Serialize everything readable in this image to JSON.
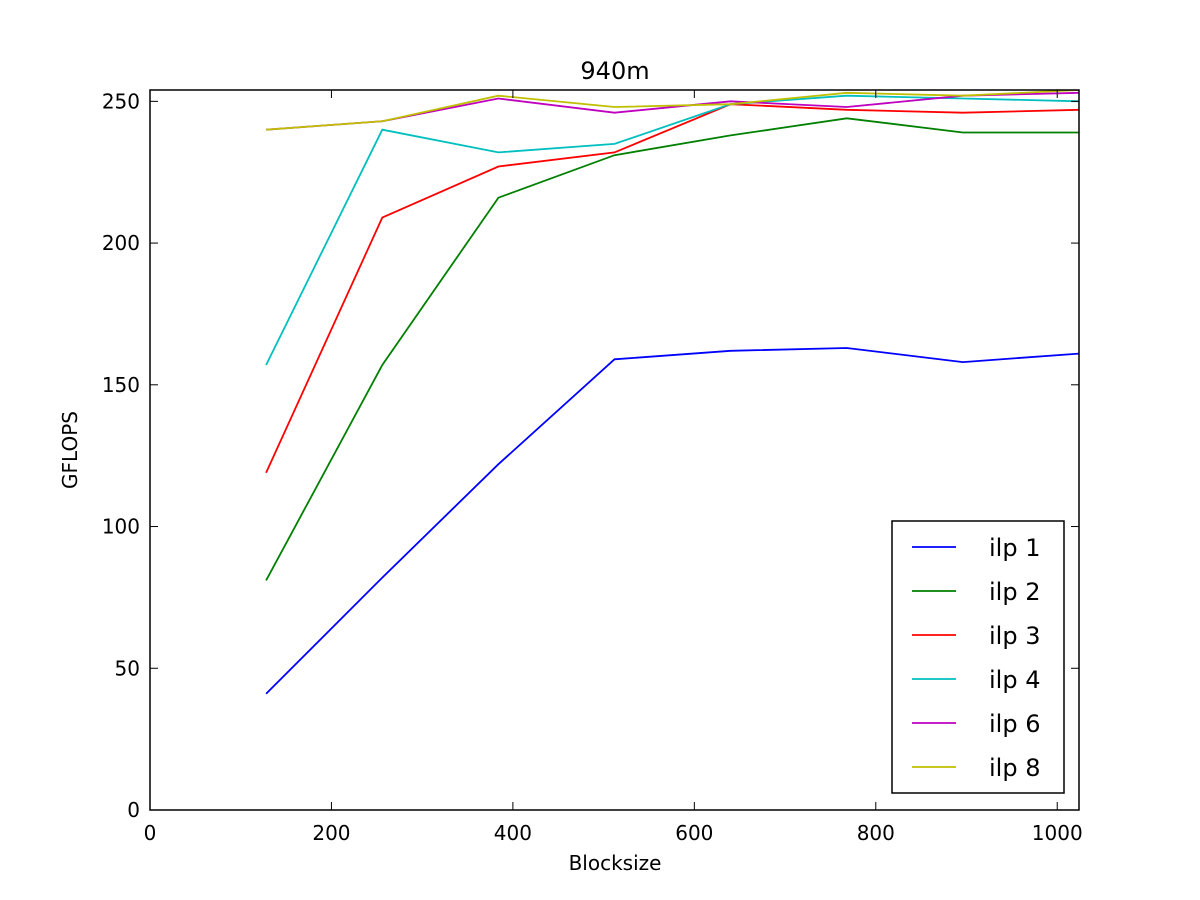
{
  "chart_data": {
    "type": "line",
    "title": "940m",
    "xlabel": "Blocksize",
    "ylabel": "GFLOPS",
    "xlim": [
      0,
      1024
    ],
    "ylim": [
      0,
      254
    ],
    "xticks": [
      0,
      200,
      400,
      600,
      800,
      1000
    ],
    "yticks": [
      0,
      50,
      100,
      150,
      200,
      250
    ],
    "x": [
      128,
      256,
      384,
      512,
      640,
      768,
      896,
      1024
    ],
    "legend_position": "lower-right",
    "grid": false,
    "series": [
      {
        "name": "ilp 1",
        "color": "#0000ff",
        "values": [
          41,
          82,
          122,
          159,
          162,
          163,
          158,
          161
        ]
      },
      {
        "name": "ilp 2",
        "color": "#008000",
        "values": [
          81,
          157,
          216,
          231,
          238,
          244,
          239,
          239
        ]
      },
      {
        "name": "ilp 3",
        "color": "#ff0000",
        "values": [
          119,
          209,
          227,
          232,
          249,
          247,
          246,
          247
        ]
      },
      {
        "name": "ilp 4",
        "color": "#00bfbf",
        "values": [
          157,
          240,
          232,
          235,
          249,
          252,
          251,
          250
        ]
      },
      {
        "name": "ilp 6",
        "color": "#bf00bf",
        "values": [
          240,
          243,
          251,
          246,
          250,
          248,
          252,
          253
        ]
      },
      {
        "name": "ilp 8",
        "color": "#bfbf00",
        "values": [
          240,
          243,
          252,
          248,
          249,
          253,
          252,
          254
        ]
      }
    ]
  }
}
